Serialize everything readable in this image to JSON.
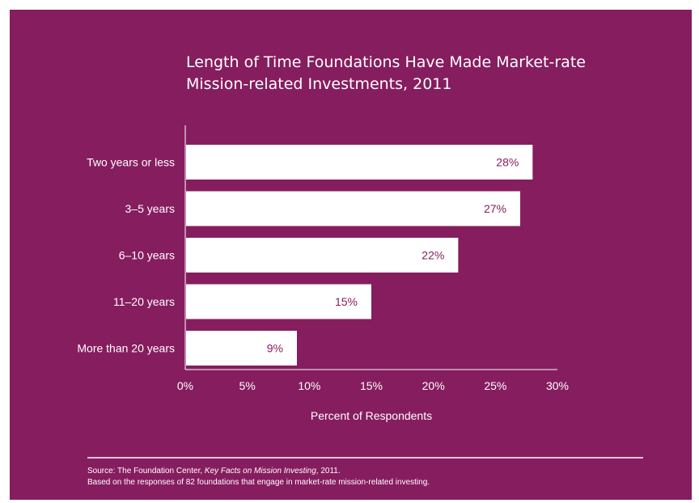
{
  "colors": {
    "background": "#861d5f",
    "bar": "#ffffff",
    "bar_label": "#861d5f",
    "text": "#ffffff"
  },
  "chart_data": {
    "type": "bar",
    "orientation": "horizontal",
    "title_lines": [
      "Length of Time Foundations Have Made Market-rate",
      "Mission-related Investments, 2011"
    ],
    "categories": [
      "Two years or less",
      "3–5 years",
      "6–10 years",
      "11–20 years",
      "More than 20 years"
    ],
    "values": [
      28,
      27,
      22,
      15,
      9
    ],
    "value_labels": [
      "28%",
      "27%",
      "22%",
      "15%",
      "9%"
    ],
    "xlabel": "Percent of Respondents",
    "xlim": [
      0,
      30
    ],
    "xticks": [
      0,
      5,
      10,
      15,
      20,
      25,
      30
    ],
    "xtick_labels": [
      "0%",
      "5%",
      "10%",
      "15%",
      "20%",
      "25%",
      "30%"
    ],
    "grid": false
  },
  "source": {
    "prefix": "Source: The Foundation Center, ",
    "publication": "Key Facts on Mission Investing",
    "suffix": ", 2011.",
    "note": "Based on the responses of 82 foundations that engage in market-rate mission-related investing."
  }
}
